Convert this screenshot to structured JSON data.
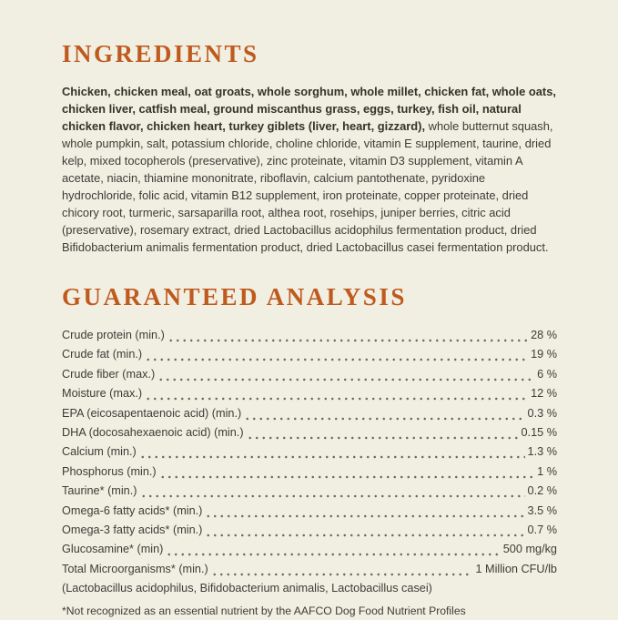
{
  "page": {
    "background": "#f1eee2",
    "accent": "#bf5a1e",
    "text_color": "#3e3c35"
  },
  "ingredients": {
    "title": "INGREDIENTS",
    "primary_bold": "Chicken, chicken meal, oat groats, whole sorghum, whole millet, chicken fat, whole oats, chicken liver, catfish meal, ground miscanthus grass, eggs, turkey, fish oil, natural chicken flavor, chicken heart, turkey giblets (liver, heart, gizzard),",
    "secondary": " whole butternut squash, whole pumpkin, salt, potassium chloride, choline chloride, vitamin E supplement, taurine, dried kelp, mixed tocopherols (preservative), zinc proteinate, vitamin D3 supplement, vitamin A acetate, niacin, thiamine mononitrate, riboflavin, calcium pantothenate, pyridoxine hydrochloride, folic acid, vitamin B12 supplement, iron proteinate, copper proteinate, dried chicory root, turmeric, sarsaparilla root, althea root, rosehips, juniper berries, citric acid (preservative), rosemary extract, dried Lactobacillus acidophilus fermentation product, dried Bifidobacterium animalis fermentation product, dried Lactobacillus casei fermentation product."
  },
  "analysis": {
    "title": "GUARANTEED ANALYSIS",
    "rows": [
      {
        "label": "Crude protein (min.)",
        "value": "28 %"
      },
      {
        "label": "Crude fat (min.)",
        "value": "19 %"
      },
      {
        "label": "Crude fiber (max.)",
        "value": "6 %"
      },
      {
        "label": "Moisture (max.)",
        "value": "12 %"
      },
      {
        "label": "EPA (eicosapentaenoic acid) (min.)",
        "value": "0.3 %"
      },
      {
        "label": "DHA (docosahexaenoic acid) (min.)",
        "value": "0.15 %"
      },
      {
        "label": "Calcium (min.)",
        "value": "1.3 %"
      },
      {
        "label": "Phosphorus (min.)",
        "value": "1 %"
      },
      {
        "label": "Taurine* (min.)",
        "value": "0.2 %"
      },
      {
        "label": "Omega-6 fatty acids* (min.)",
        "value": "3.5 %"
      },
      {
        "label": "Omega-3 fatty acids* (min.)",
        "value": "0.7 %"
      },
      {
        "label": "Glucosamine* (min)",
        "value": "500 mg/kg"
      },
      {
        "label": "Total Microorganisms* (min.)",
        "value": "1 Million CFU/lb"
      }
    ],
    "microorganisms_detail": "(Lactobacillus acidophilus, Bifidobacterium animalis, Lactobacillus casei)",
    "footnote": "*Not recognized as an essential nutrient by the AAFCO Dog Food Nutrient Profiles"
  }
}
